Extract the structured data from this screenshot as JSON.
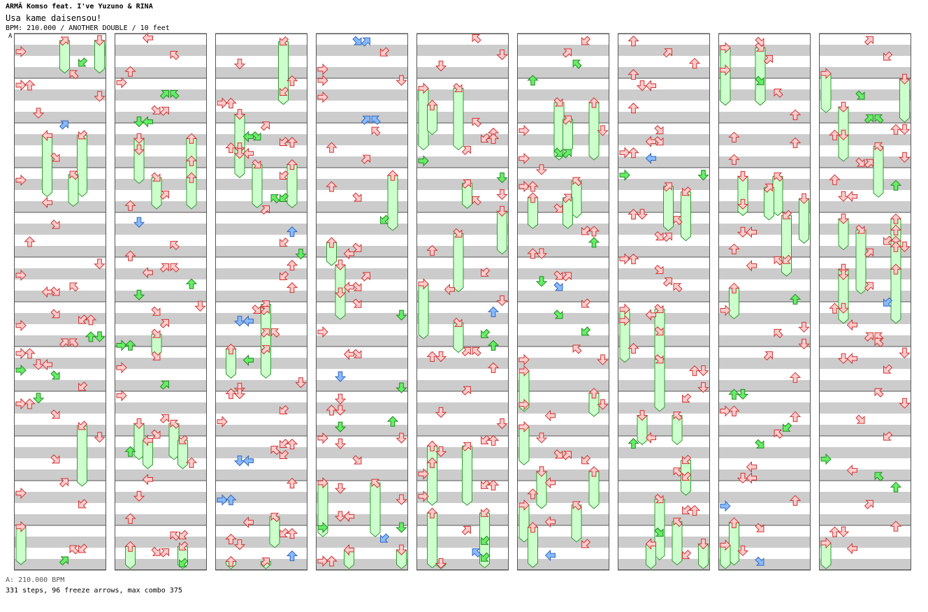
{
  "header": {
    "title": "ARMĂ Komso feat. I've Yuzuno & RINA",
    "subtitle": "Usa kame daisensou!",
    "bpm_info": "BPM: 210.000 / ANOTHER DOUBLE / 10 feet",
    "section_marker": "A"
  },
  "footer": {
    "bpm_legend": "A: 210.000 BPM",
    "stats": "331 steps, 96 freeze arrows, max combo 375"
  },
  "colors": {
    "stripe": "#cccccc",
    "border": "#555555",
    "arrow_fill": "#ffcccc",
    "arrow_stroke": "#cc3333",
    "arrow_fill_16th": "#66ee66",
    "arrow_stroke_16th": "#228822",
    "arrow_fill_24th": "#88bbff",
    "arrow_stroke_24th": "#3366bb",
    "freeze_fill": "#ccffcc",
    "freeze_stroke": "#339933"
  }
}
